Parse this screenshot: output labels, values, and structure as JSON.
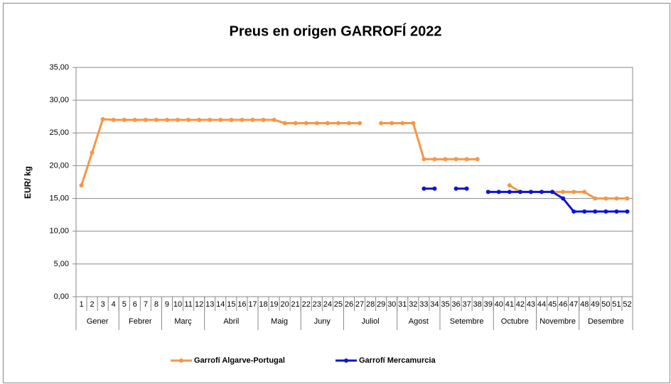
{
  "chart_data": {
    "type": "line",
    "title": "Preus en origen GARROFÍ  2022",
    "y_label": "EUR/ kg",
    "categories": [
      "1",
      "2",
      "3",
      "4",
      "5",
      "6",
      "7",
      "8",
      "9",
      "10",
      "11",
      "12",
      "13",
      "14",
      "15",
      "16",
      "17",
      "18",
      "19",
      "20",
      "21",
      "22",
      "23",
      "24",
      "25",
      "26",
      "27",
      "28",
      "29",
      "30",
      "31",
      "32",
      "33",
      "34",
      "35",
      "36",
      "37",
      "38",
      "39",
      "40",
      "41",
      "42",
      "43",
      "44",
      "45",
      "46",
      "47",
      "48",
      "49",
      "50",
      "51",
      "52"
    ],
    "month_groups": [
      {
        "label": "Gener",
        "span": 4
      },
      {
        "label": "Febrer",
        "span": 4
      },
      {
        "label": "Març",
        "span": 4
      },
      {
        "label": "Abril",
        "span": 5
      },
      {
        "label": "Maig",
        "span": 4
      },
      {
        "label": "Juny",
        "span": 4
      },
      {
        "label": "Juliol",
        "span": 5
      },
      {
        "label": "Agost",
        "span": 4
      },
      {
        "label": "Setembre",
        "span": 5
      },
      {
        "label": "Octubre",
        "span": 4
      },
      {
        "label": "Novembre",
        "span": 4
      },
      {
        "label": "Desembre",
        "span": 5
      }
    ],
    "series": [
      {
        "name": "Garrofí Algarve-Portugal",
        "color": "#f79646",
        "values": [
          17,
          22,
          27.1,
          27,
          27,
          27,
          27,
          27,
          27,
          27,
          27,
          27,
          27,
          27,
          27,
          27,
          27,
          27,
          27,
          26.5,
          26.5,
          26.5,
          26.5,
          26.5,
          26.5,
          26.5,
          26.5,
          null,
          26.5,
          26.5,
          26.5,
          26.5,
          21,
          21,
          21,
          21,
          21,
          21,
          null,
          null,
          17,
          16,
          16,
          16,
          16,
          16,
          16,
          16,
          15,
          15,
          15,
          15
        ]
      },
      {
        "name": "Garrofí Mercamurcia",
        "color": "#0a14d6",
        "values": [
          null,
          null,
          null,
          null,
          null,
          null,
          null,
          null,
          null,
          null,
          null,
          null,
          null,
          null,
          null,
          null,
          null,
          null,
          null,
          null,
          null,
          null,
          null,
          null,
          null,
          null,
          null,
          null,
          null,
          null,
          null,
          null,
          16.5,
          16.5,
          null,
          16.5,
          16.5,
          null,
          16,
          16,
          16,
          16,
          16,
          16,
          16,
          15,
          13,
          13,
          13,
          13,
          13,
          13
        ]
      }
    ],
    "ylim": [
      0,
      35
    ],
    "yticks": [
      {
        "value": 0,
        "label": "0,00"
      },
      {
        "value": 5,
        "label": "5,00"
      },
      {
        "value": 10,
        "label": "10,00"
      },
      {
        "value": 15,
        "label": "15,00"
      },
      {
        "value": 20,
        "label": "20,00"
      },
      {
        "value": 25,
        "label": "25,00"
      },
      {
        "value": 30,
        "label": "30,00"
      },
      {
        "value": 35,
        "label": "35,00"
      }
    ],
    "grid": true
  }
}
